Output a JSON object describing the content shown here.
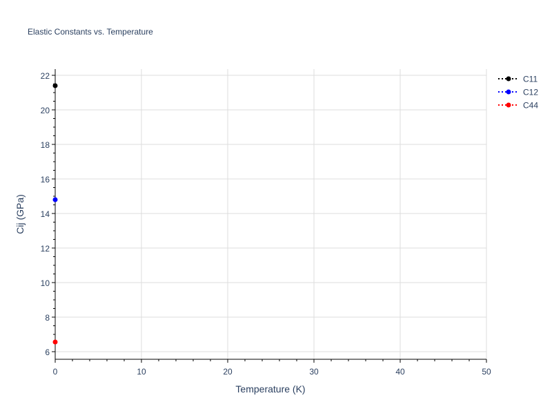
{
  "chart_data": {
    "type": "scatter",
    "title": "Elastic Constants vs. Temperature",
    "xlabel": "Temperature (K)",
    "ylabel": "Cij (GPa)",
    "xlim": [
      0,
      50
    ],
    "ylim": [
      5.56,
      22.36
    ],
    "xticks": [
      0,
      10,
      20,
      30,
      40,
      50
    ],
    "yticks": [
      6,
      8,
      10,
      12,
      14,
      16,
      18,
      20,
      22
    ],
    "grid": true,
    "legend_position": "top-right",
    "series": [
      {
        "name": "C11",
        "color": "#000000",
        "line_style": "dotted",
        "x": [
          0
        ],
        "y": [
          21.4
        ]
      },
      {
        "name": "C12",
        "color": "#0000ff",
        "line_style": "dotted",
        "x": [
          0
        ],
        "y": [
          14.8
        ]
      },
      {
        "name": "C44",
        "color": "#ff0000",
        "line_style": "dotted",
        "x": [
          0
        ],
        "y": [
          6.56
        ]
      }
    ]
  }
}
